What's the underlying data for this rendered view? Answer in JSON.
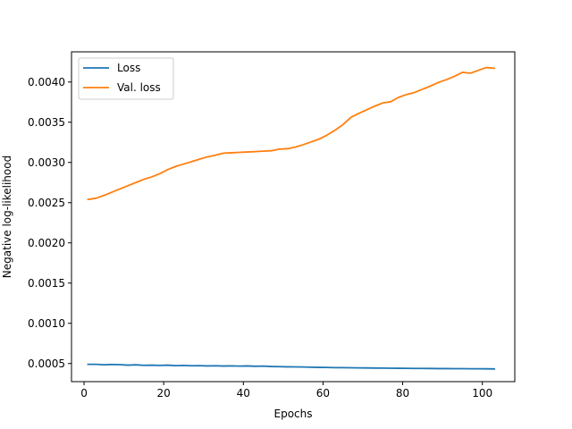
{
  "chart_data": {
    "type": "line",
    "title": "",
    "xlabel": "Epochs",
    "ylabel": "Negative log-likelihood",
    "xlim": [
      -3.15,
      108.15
    ],
    "ylim": [
      0.000275,
      0.004375
    ],
    "xticks": [
      0,
      20,
      40,
      60,
      80,
      100
    ],
    "xtick_labels": [
      "0",
      "20",
      "40",
      "60",
      "80",
      "100"
    ],
    "yticks": [
      0.0005,
      0.001,
      0.0015,
      0.002,
      0.0025,
      0.003,
      0.0035,
      0.004
    ],
    "ytick_labels": [
      "0.0005",
      "0.0010",
      "0.0015",
      "0.0020",
      "0.0025",
      "0.0030",
      "0.0035",
      "0.0040"
    ],
    "grid": false,
    "legend_position": "upper-left",
    "series": [
      {
        "name": "Loss",
        "color": "#1f77b4",
        "x": [
          1,
          3,
          5,
          7,
          9,
          11,
          13,
          15,
          17,
          19,
          21,
          23,
          25,
          27,
          29,
          31,
          33,
          35,
          37,
          39,
          41,
          43,
          45,
          47,
          49,
          51,
          53,
          55,
          57,
          59,
          61,
          63,
          65,
          67,
          69,
          71,
          73,
          75,
          77,
          79,
          81,
          83,
          85,
          87,
          89,
          91,
          93,
          95,
          97,
          99,
          101,
          103
        ],
        "y": [
          0.00049,
          0.00049,
          0.000485,
          0.000488,
          0.000486,
          0.00048,
          0.000484,
          0.000478,
          0.00048,
          0.000476,
          0.00048,
          0.000474,
          0.000476,
          0.000472,
          0.000474,
          0.00047,
          0.000472,
          0.000469,
          0.000471,
          0.000468,
          0.00047,
          0.000466,
          0.000468,
          0.000463,
          0.000461,
          0.000459,
          0.000458,
          0.000457,
          0.000454,
          0.000452,
          0.000451,
          0.000449,
          0.000449,
          0.000447,
          0.000446,
          0.000445,
          0.000444,
          0.000443,
          0.000442,
          0.000441,
          0.00044,
          0.000439,
          0.000439,
          0.000438,
          0.000437,
          0.000437,
          0.000436,
          0.000436,
          0.000435,
          0.000435,
          0.000434,
          0.000433
        ]
      },
      {
        "name": "Val. loss",
        "color": "#ff7f0e",
        "x": [
          1,
          3,
          5,
          7,
          9,
          11,
          13,
          15,
          17,
          19,
          21,
          23,
          25,
          27,
          29,
          31,
          33,
          35,
          37,
          39,
          41,
          43,
          45,
          47,
          49,
          51,
          53,
          55,
          57,
          59,
          61,
          63,
          65,
          67,
          69,
          71,
          73,
          75,
          77,
          79,
          81,
          83,
          85,
          87,
          89,
          91,
          93,
          95,
          97,
          99,
          101,
          103
        ],
        "y": [
          0.00254,
          0.002555,
          0.00259,
          0.00263,
          0.00267,
          0.00271,
          0.00275,
          0.00279,
          0.00282,
          0.00286,
          0.00291,
          0.00295,
          0.00298,
          0.00301,
          0.00304,
          0.00307,
          0.00309,
          0.003115,
          0.00312,
          0.003125,
          0.00313,
          0.003135,
          0.00314,
          0.003145,
          0.003165,
          0.00317,
          0.00319,
          0.00322,
          0.003255,
          0.00329,
          0.00334,
          0.0034,
          0.00347,
          0.00356,
          0.00361,
          0.003655,
          0.0037,
          0.00374,
          0.003755,
          0.00381,
          0.003845,
          0.00387,
          0.00391,
          0.00395,
          0.003995,
          0.00403,
          0.00407,
          0.00412,
          0.00411,
          0.004145,
          0.00418,
          0.00417
        ]
      }
    ]
  }
}
